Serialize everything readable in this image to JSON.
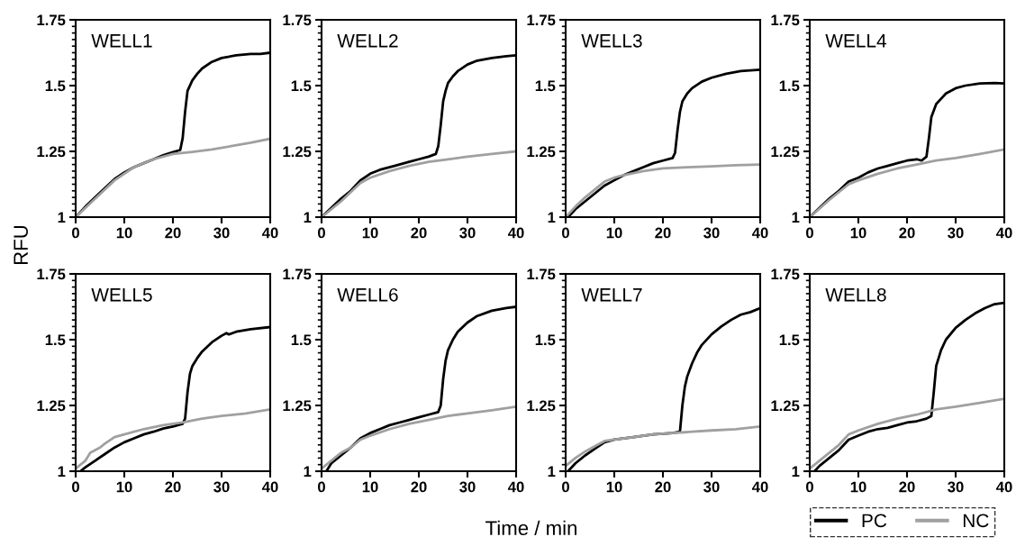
{
  "chart_data": [
    {
      "type": "line",
      "title": "WELL1",
      "ylabel": "RFU",
      "legend": "bottom right",
      "xlim": [
        0,
        40
      ],
      "xticks": [
        0,
        10,
        20,
        30,
        40
      ],
      "ylim": [
        1,
        1.75
      ],
      "yticks": [
        1,
        {
          "value": 1.025,
          "label": null
        },
        {
          "value": 1.05,
          "label": null
        },
        {
          "value": 1.075,
          "label": null
        },
        {
          "value": 1.1,
          "label": null
        },
        {
          "value": 1.125,
          "label": null
        },
        {
          "value": 1.15,
          "label": null
        },
        {
          "value": 1.175,
          "label": null
        },
        {
          "value": 1.2,
          "label": null
        },
        {
          "value": 1.225,
          "label": null
        },
        1.25,
        {
          "value": 1.275,
          "label": null
        },
        {
          "value": 1.3,
          "label": null
        },
        {
          "value": 1.325,
          "label": null
        },
        {
          "value": 1.35,
          "label": null
        },
        {
          "value": 1.375,
          "label": null
        },
        {
          "value": 1.4,
          "label": null
        },
        {
          "value": 1.425,
          "label": null
        },
        {
          "value": 1.45,
          "label": null
        },
        {
          "value": 1.475,
          "label": null
        },
        1.5,
        {
          "value": 1.525,
          "label": null
        },
        {
          "value": 1.55,
          "label": null
        },
        {
          "value": 1.575,
          "label": null
        },
        {
          "value": 1.6,
          "label": null
        },
        {
          "value": 1.625,
          "label": null
        },
        {
          "value": 1.65,
          "label": null
        },
        {
          "value": 1.675,
          "label": null
        },
        {
          "value": 1.7,
          "label": null
        },
        {
          "value": 1.725,
          "label": null
        },
        1.75
      ],
      "grid": false,
      "series": [
        {
          "name": "PC",
          "color": "#000000",
          "x": [
            0,
            2,
            4,
            6,
            8,
            10,
            12,
            14,
            16,
            18,
            20,
            21.5,
            22,
            22.5,
            23,
            24,
            25,
            26,
            28,
            30,
            33,
            36,
            38,
            40
          ],
          "values": [
            1.0,
            1.04,
            1.075,
            1.11,
            1.145,
            1.17,
            1.19,
            1.205,
            1.22,
            1.235,
            1.247,
            1.255,
            1.3,
            1.4,
            1.48,
            1.52,
            1.545,
            1.565,
            1.59,
            1.605,
            1.615,
            1.62,
            1.62,
            1.625
          ]
        },
        {
          "name": "NC",
          "color": "#a0a0a0",
          "x": [
            0,
            4,
            8,
            12,
            16,
            20,
            24,
            28,
            32,
            36,
            40
          ],
          "values": [
            1.0,
            1.07,
            1.14,
            1.19,
            1.22,
            1.24,
            1.248,
            1.257,
            1.27,
            1.283,
            1.298
          ]
        }
      ]
    },
    {
      "type": "line",
      "title": "WELL2",
      "xlim": [
        0,
        40
      ],
      "xticks": [
        0,
        10,
        20,
        30,
        40
      ],
      "ylim": [
        1,
        1.75
      ],
      "yticks": [
        1,
        {
          "value": 1.025,
          "label": null
        },
        {
          "value": 1.05,
          "label": null
        },
        {
          "value": 1.075,
          "label": null
        },
        {
          "value": 1.1,
          "label": null
        },
        {
          "value": 1.125,
          "label": null
        },
        {
          "value": 1.15,
          "label": null
        },
        {
          "value": 1.175,
          "label": null
        },
        {
          "value": 1.2,
          "label": null
        },
        {
          "value": 1.225,
          "label": null
        },
        1.25,
        {
          "value": 1.275,
          "label": null
        },
        {
          "value": 1.3,
          "label": null
        },
        {
          "value": 1.325,
          "label": null
        },
        {
          "value": 1.35,
          "label": null
        },
        {
          "value": 1.375,
          "label": null
        },
        {
          "value": 1.4,
          "label": null
        },
        {
          "value": 1.425,
          "label": null
        },
        {
          "value": 1.45,
          "label": null
        },
        {
          "value": 1.475,
          "label": null
        },
        1.5,
        {
          "value": 1.525,
          "label": null
        },
        {
          "value": 1.55,
          "label": null
        },
        {
          "value": 1.575,
          "label": null
        },
        {
          "value": 1.6,
          "label": null
        },
        {
          "value": 1.625,
          "label": null
        },
        {
          "value": 1.65,
          "label": null
        },
        {
          "value": 1.675,
          "label": null
        },
        {
          "value": 1.7,
          "label": null
        },
        {
          "value": 1.725,
          "label": null
        },
        1.75
      ],
      "grid": false,
      "series": [
        {
          "color": "#000000",
          "x": [
            0,
            2,
            4,
            6,
            8,
            10,
            12,
            15,
            18,
            20,
            22,
            23.5,
            24,
            24.5,
            25,
            25.5,
            26,
            27,
            28,
            30,
            32,
            35,
            38,
            40
          ],
          "values": [
            1.0,
            1.035,
            1.07,
            1.1,
            1.14,
            1.165,
            1.18,
            1.195,
            1.21,
            1.22,
            1.23,
            1.24,
            1.27,
            1.35,
            1.44,
            1.48,
            1.51,
            1.535,
            1.555,
            1.58,
            1.595,
            1.605,
            1.612,
            1.615
          ]
        },
        {
          "color": "#a0a0a0",
          "x": [
            0,
            4,
            8,
            10,
            14,
            18,
            22,
            26,
            30,
            35,
            40
          ],
          "values": [
            1.0,
            1.06,
            1.13,
            1.15,
            1.175,
            1.195,
            1.21,
            1.22,
            1.23,
            1.24,
            1.25
          ]
        }
      ]
    },
    {
      "type": "line",
      "title": "WELL3",
      "xlim": [
        0,
        40
      ],
      "xticks": [
        0,
        10,
        20,
        30,
        40
      ],
      "ylim": [
        1,
        1.75
      ],
      "yticks": [
        1,
        {
          "value": 1.025,
          "label": null
        },
        {
          "value": 1.05,
          "label": null
        },
        {
          "value": 1.075,
          "label": null
        },
        {
          "value": 1.1,
          "label": null
        },
        {
          "value": 1.125,
          "label": null
        },
        {
          "value": 1.15,
          "label": null
        },
        {
          "value": 1.175,
          "label": null
        },
        {
          "value": 1.2,
          "label": null
        },
        {
          "value": 1.225,
          "label": null
        },
        1.25,
        {
          "value": 1.275,
          "label": null
        },
        {
          "value": 1.3,
          "label": null
        },
        {
          "value": 1.325,
          "label": null
        },
        {
          "value": 1.35,
          "label": null
        },
        {
          "value": 1.375,
          "label": null
        },
        {
          "value": 1.4,
          "label": null
        },
        {
          "value": 1.425,
          "label": null
        },
        {
          "value": 1.45,
          "label": null
        },
        {
          "value": 1.475,
          "label": null
        },
        1.5,
        {
          "value": 1.525,
          "label": null
        },
        {
          "value": 1.55,
          "label": null
        },
        {
          "value": 1.575,
          "label": null
        },
        {
          "value": 1.6,
          "label": null
        },
        {
          "value": 1.625,
          "label": null
        },
        {
          "value": 1.65,
          "label": null
        },
        {
          "value": 1.675,
          "label": null
        },
        {
          "value": 1.7,
          "label": null
        },
        {
          "value": 1.725,
          "label": null
        },
        1.75
      ],
      "grid": false,
      "series": [
        {
          "color": "#000000",
          "x": [
            0.5,
            2,
            4,
            6,
            8,
            10,
            12,
            14,
            16,
            18,
            20,
            22,
            22.5,
            23,
            23.5,
            24,
            25,
            26,
            28,
            30,
            33,
            36,
            40
          ],
          "values": [
            1.0,
            1.03,
            1.06,
            1.09,
            1.12,
            1.14,
            1.16,
            1.175,
            1.19,
            1.205,
            1.215,
            1.225,
            1.245,
            1.33,
            1.4,
            1.44,
            1.47,
            1.49,
            1.515,
            1.53,
            1.545,
            1.555,
            1.56
          ]
        },
        {
          "color": "#a0a0a0",
          "x": [
            0,
            2,
            4,
            6,
            8,
            10,
            12,
            16,
            20,
            25,
            30,
            35,
            40
          ],
          "values": [
            1.0,
            1.04,
            1.075,
            1.105,
            1.135,
            1.15,
            1.16,
            1.175,
            1.185,
            1.19,
            1.193,
            1.197,
            1.2
          ]
        }
      ]
    },
    {
      "type": "line",
      "title": "WELL4",
      "xlim": [
        0,
        40
      ],
      "xticks": [
        0,
        10,
        20,
        30,
        40
      ],
      "ylim": [
        1,
        1.75
      ],
      "yticks": [
        1,
        {
          "value": 1.025,
          "label": null
        },
        {
          "value": 1.05,
          "label": null
        },
        {
          "value": 1.075,
          "label": null
        },
        {
          "value": 1.1,
          "label": null
        },
        {
          "value": 1.125,
          "label": null
        },
        {
          "value": 1.15,
          "label": null
        },
        {
          "value": 1.175,
          "label": null
        },
        {
          "value": 1.2,
          "label": null
        },
        {
          "value": 1.225,
          "label": null
        },
        1.25,
        {
          "value": 1.275,
          "label": null
        },
        {
          "value": 1.3,
          "label": null
        },
        {
          "value": 1.325,
          "label": null
        },
        {
          "value": 1.35,
          "label": null
        },
        {
          "value": 1.375,
          "label": null
        },
        {
          "value": 1.4,
          "label": null
        },
        {
          "value": 1.425,
          "label": null
        },
        {
          "value": 1.45,
          "label": null
        },
        {
          "value": 1.475,
          "label": null
        },
        1.5,
        {
          "value": 1.525,
          "label": null
        },
        {
          "value": 1.55,
          "label": null
        },
        {
          "value": 1.575,
          "label": null
        },
        {
          "value": 1.6,
          "label": null
        },
        {
          "value": 1.625,
          "label": null
        },
        {
          "value": 1.65,
          "label": null
        },
        {
          "value": 1.675,
          "label": null
        },
        {
          "value": 1.7,
          "label": null
        },
        {
          "value": 1.725,
          "label": null
        },
        1.75
      ],
      "grid": false,
      "series": [
        {
          "color": "#000000",
          "x": [
            0,
            2,
            4,
            6,
            8,
            10,
            12,
            14,
            16,
            18,
            20,
            22,
            23,
            24,
            24.5,
            25,
            26,
            27,
            28,
            30,
            32,
            35,
            38,
            40
          ],
          "values": [
            1.0,
            1.035,
            1.07,
            1.1,
            1.135,
            1.15,
            1.17,
            1.185,
            1.195,
            1.205,
            1.215,
            1.22,
            1.215,
            1.23,
            1.3,
            1.38,
            1.43,
            1.45,
            1.47,
            1.49,
            1.5,
            1.508,
            1.51,
            1.508
          ]
        },
        {
          "color": "#a0a0a0",
          "x": [
            0,
            4,
            8,
            10,
            14,
            18,
            22,
            26,
            30,
            35,
            40
          ],
          "values": [
            1.0,
            1.065,
            1.125,
            1.14,
            1.165,
            1.185,
            1.2,
            1.215,
            1.225,
            1.24,
            1.257
          ]
        }
      ]
    },
    {
      "type": "line",
      "title": "WELL5",
      "xlim": [
        0,
        40
      ],
      "xticks": [
        0,
        10,
        20,
        30,
        40
      ],
      "ylim": [
        1,
        1.75
      ],
      "yticks": [
        1,
        {
          "value": 1.025,
          "label": null
        },
        {
          "value": 1.05,
          "label": null
        },
        {
          "value": 1.075,
          "label": null
        },
        {
          "value": 1.1,
          "label": null
        },
        {
          "value": 1.125,
          "label": null
        },
        {
          "value": 1.15,
          "label": null
        },
        {
          "value": 1.175,
          "label": null
        },
        {
          "value": 1.2,
          "label": null
        },
        {
          "value": 1.225,
          "label": null
        },
        1.25,
        {
          "value": 1.275,
          "label": null
        },
        {
          "value": 1.3,
          "label": null
        },
        {
          "value": 1.325,
          "label": null
        },
        {
          "value": 1.35,
          "label": null
        },
        {
          "value": 1.375,
          "label": null
        },
        {
          "value": 1.4,
          "label": null
        },
        {
          "value": 1.425,
          "label": null
        },
        {
          "value": 1.45,
          "label": null
        },
        {
          "value": 1.475,
          "label": null
        },
        1.5,
        {
          "value": 1.525,
          "label": null
        },
        {
          "value": 1.55,
          "label": null
        },
        {
          "value": 1.575,
          "label": null
        },
        {
          "value": 1.6,
          "label": null
        },
        {
          "value": 1.625,
          "label": null
        },
        {
          "value": 1.65,
          "label": null
        },
        {
          "value": 1.675,
          "label": null
        },
        {
          "value": 1.7,
          "label": null
        },
        {
          "value": 1.725,
          "label": null
        },
        1.75
      ],
      "grid": false,
      "series": [
        {
          "color": "#000000",
          "x": [
            1,
            2,
            4,
            6,
            8,
            10,
            12,
            14,
            16,
            18,
            20,
            22,
            22.5,
            23,
            23.5,
            24,
            25,
            26,
            28,
            30,
            31,
            31.5,
            33,
            36,
            40
          ],
          "values": [
            1.0,
            1.015,
            1.04,
            1.065,
            1.09,
            1.11,
            1.125,
            1.14,
            1.15,
            1.162,
            1.17,
            1.18,
            1.2,
            1.3,
            1.37,
            1.4,
            1.43,
            1.455,
            1.49,
            1.515,
            1.525,
            1.52,
            1.53,
            1.54,
            1.548
          ]
        },
        {
          "color": "#a0a0a0",
          "x": [
            0,
            2,
            3,
            5,
            6,
            8,
            10,
            14,
            18,
            22,
            26,
            30,
            35,
            40
          ],
          "values": [
            1.01,
            1.04,
            1.07,
            1.09,
            1.105,
            1.13,
            1.14,
            1.16,
            1.175,
            1.185,
            1.2,
            1.21,
            1.22,
            1.235
          ]
        }
      ]
    },
    {
      "type": "line",
      "title": "WELL6",
      "xlabel": "Time / min",
      "xlim": [
        0,
        40
      ],
      "xticks": [
        0,
        10,
        20,
        30,
        40
      ],
      "ylim": [
        1,
        1.75
      ],
      "yticks": [
        1,
        {
          "value": 1.025,
          "label": null
        },
        {
          "value": 1.05,
          "label": null
        },
        {
          "value": 1.075,
          "label": null
        },
        {
          "value": 1.1,
          "label": null
        },
        {
          "value": 1.125,
          "label": null
        },
        {
          "value": 1.15,
          "label": null
        },
        {
          "value": 1.175,
          "label": null
        },
        {
          "value": 1.2,
          "label": null
        },
        {
          "value": 1.225,
          "label": null
        },
        1.25,
        {
          "value": 1.275,
          "label": null
        },
        {
          "value": 1.3,
          "label": null
        },
        {
          "value": 1.325,
          "label": null
        },
        {
          "value": 1.35,
          "label": null
        },
        {
          "value": 1.375,
          "label": null
        },
        {
          "value": 1.4,
          "label": null
        },
        {
          "value": 1.425,
          "label": null
        },
        {
          "value": 1.45,
          "label": null
        },
        {
          "value": 1.475,
          "label": null
        },
        1.5,
        {
          "value": 1.525,
          "label": null
        },
        {
          "value": 1.55,
          "label": null
        },
        {
          "value": 1.575,
          "label": null
        },
        {
          "value": 1.6,
          "label": null
        },
        {
          "value": 1.625,
          "label": null
        },
        {
          "value": 1.65,
          "label": null
        },
        {
          "value": 1.675,
          "label": null
        },
        {
          "value": 1.7,
          "label": null
        },
        {
          "value": 1.725,
          "label": null
        },
        1.75
      ],
      "grid": false,
      "series": [
        {
          "color": "#000000",
          "x": [
            1,
            2,
            4,
            6,
            8,
            10,
            12,
            14,
            16,
            18,
            20,
            22,
            24,
            24.5,
            25,
            25.5,
            26,
            27,
            28,
            30,
            32,
            35,
            38,
            40
          ],
          "values": [
            1.0,
            1.03,
            1.06,
            1.09,
            1.125,
            1.145,
            1.16,
            1.175,
            1.185,
            1.195,
            1.205,
            1.215,
            1.225,
            1.25,
            1.35,
            1.42,
            1.46,
            1.5,
            1.53,
            1.565,
            1.59,
            1.61,
            1.62,
            1.625
          ]
        },
        {
          "color": "#a0a0a0",
          "x": [
            0,
            2,
            4,
            6,
            8,
            10,
            14,
            18,
            22,
            26,
            30,
            35,
            40
          ],
          "values": [
            1.01,
            1.04,
            1.07,
            1.09,
            1.12,
            1.135,
            1.16,
            1.18,
            1.195,
            1.21,
            1.22,
            1.232,
            1.245
          ]
        }
      ]
    },
    {
      "type": "line",
      "title": "WELL7",
      "xlim": [
        0,
        40
      ],
      "xticks": [
        0,
        10,
        20,
        30,
        40
      ],
      "ylim": [
        1,
        1.75
      ],
      "yticks": [
        1,
        {
          "value": 1.025,
          "label": null
        },
        {
          "value": 1.05,
          "label": null
        },
        {
          "value": 1.075,
          "label": null
        },
        {
          "value": 1.1,
          "label": null
        },
        {
          "value": 1.125,
          "label": null
        },
        {
          "value": 1.15,
          "label": null
        },
        {
          "value": 1.175,
          "label": null
        },
        {
          "value": 1.2,
          "label": null
        },
        {
          "value": 1.225,
          "label": null
        },
        1.25,
        {
          "value": 1.275,
          "label": null
        },
        {
          "value": 1.3,
          "label": null
        },
        {
          "value": 1.325,
          "label": null
        },
        {
          "value": 1.35,
          "label": null
        },
        {
          "value": 1.375,
          "label": null
        },
        {
          "value": 1.4,
          "label": null
        },
        {
          "value": 1.425,
          "label": null
        },
        {
          "value": 1.45,
          "label": null
        },
        {
          "value": 1.475,
          "label": null
        },
        1.5,
        {
          "value": 1.525,
          "label": null
        },
        {
          "value": 1.55,
          "label": null
        },
        {
          "value": 1.575,
          "label": null
        },
        {
          "value": 1.6,
          "label": null
        },
        {
          "value": 1.625,
          "label": null
        },
        {
          "value": 1.65,
          "label": null
        },
        {
          "value": 1.675,
          "label": null
        },
        {
          "value": 1.7,
          "label": null
        },
        {
          "value": 1.725,
          "label": null
        },
        1.75
      ],
      "grid": false,
      "series": [
        {
          "color": "#000000",
          "x": [
            0.5,
            2,
            4,
            6,
            8,
            10,
            14,
            18,
            22,
            23.5,
            24,
            24.5,
            25,
            26,
            27,
            28,
            30,
            32,
            34,
            36,
            38,
            40
          ],
          "values": [
            1.0,
            1.03,
            1.06,
            1.085,
            1.11,
            1.12,
            1.13,
            1.14,
            1.145,
            1.15,
            1.25,
            1.32,
            1.36,
            1.41,
            1.45,
            1.48,
            1.52,
            1.55,
            1.575,
            1.595,
            1.605,
            1.62
          ]
        },
        {
          "color": "#a0a0a0",
          "x": [
            0,
            2,
            4,
            6,
            8,
            10,
            14,
            18,
            22,
            26,
            30,
            35,
            40
          ],
          "values": [
            1.02,
            1.05,
            1.075,
            1.095,
            1.115,
            1.12,
            1.13,
            1.14,
            1.145,
            1.15,
            1.155,
            1.16,
            1.17
          ]
        }
      ]
    },
    {
      "type": "line",
      "title": "WELL8",
      "xlim": [
        0,
        40
      ],
      "xticks": [
        0,
        10,
        20,
        30,
        40
      ],
      "ylim": [
        1,
        1.75
      ],
      "yticks": [
        1,
        {
          "value": 1.025,
          "label": null
        },
        {
          "value": 1.05,
          "label": null
        },
        {
          "value": 1.075,
          "label": null
        },
        {
          "value": 1.1,
          "label": null
        },
        {
          "value": 1.125,
          "label": null
        },
        {
          "value": 1.15,
          "label": null
        },
        {
          "value": 1.175,
          "label": null
        },
        {
          "value": 1.2,
          "label": null
        },
        {
          "value": 1.225,
          "label": null
        },
        1.25,
        {
          "value": 1.275,
          "label": null
        },
        {
          "value": 1.3,
          "label": null
        },
        {
          "value": 1.325,
          "label": null
        },
        {
          "value": 1.35,
          "label": null
        },
        {
          "value": 1.375,
          "label": null
        },
        {
          "value": 1.4,
          "label": null
        },
        {
          "value": 1.425,
          "label": null
        },
        {
          "value": 1.45,
          "label": null
        },
        {
          "value": 1.475,
          "label": null
        },
        1.5,
        {
          "value": 1.525,
          "label": null
        },
        {
          "value": 1.55,
          "label": null
        },
        {
          "value": 1.575,
          "label": null
        },
        {
          "value": 1.6,
          "label": null
        },
        {
          "value": 1.625,
          "label": null
        },
        {
          "value": 1.65,
          "label": null
        },
        {
          "value": 1.675,
          "label": null
        },
        {
          "value": 1.7,
          "label": null
        },
        {
          "value": 1.725,
          "label": null
        },
        1.75
      ],
      "grid": false,
      "series": [
        {
          "color": "#000000",
          "x": [
            1,
            2,
            4,
            6,
            7,
            8,
            10,
            12,
            14,
            16,
            18,
            20,
            22,
            24,
            25,
            25.5,
            26,
            27,
            28,
            30,
            32,
            34,
            36,
            38,
            40
          ],
          "values": [
            1.0,
            1.02,
            1.05,
            1.08,
            1.1,
            1.12,
            1.135,
            1.15,
            1.16,
            1.165,
            1.175,
            1.185,
            1.19,
            1.2,
            1.21,
            1.3,
            1.4,
            1.46,
            1.5,
            1.545,
            1.575,
            1.6,
            1.62,
            1.635,
            1.64
          ]
        },
        {
          "color": "#a0a0a0",
          "x": [
            0,
            2,
            4,
            6,
            8,
            10,
            14,
            18,
            22,
            26,
            30,
            35,
            40
          ],
          "values": [
            1.01,
            1.04,
            1.07,
            1.1,
            1.14,
            1.155,
            1.18,
            1.2,
            1.215,
            1.235,
            1.245,
            1.26,
            1.275
          ]
        }
      ]
    }
  ]
}
